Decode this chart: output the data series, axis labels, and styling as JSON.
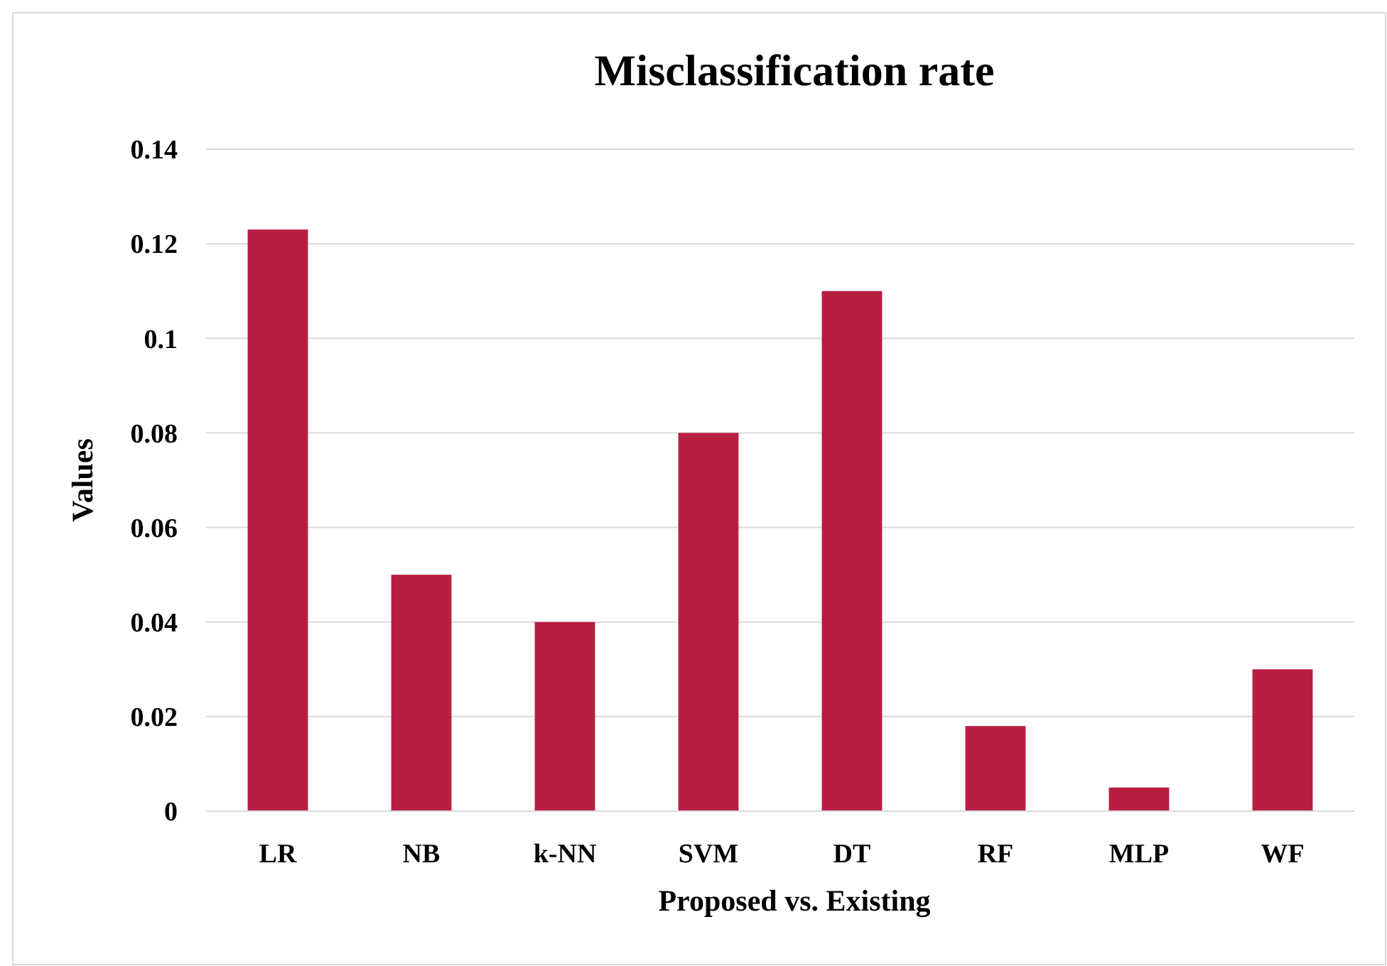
{
  "chart_data": {
    "type": "bar",
    "title": "Misclassification rate",
    "xlabel": "Proposed vs. Existing",
    "ylabel": "Values",
    "categories": [
      "LR",
      "NB",
      "k-NN",
      "SVM",
      "DT",
      "RF",
      "MLP",
      "WF"
    ],
    "values": [
      0.123,
      0.05,
      0.04,
      0.08,
      0.11,
      0.018,
      0.005,
      0.03
    ],
    "color": "#b81e42",
    "ylim": [
      0,
      0.14
    ],
    "yticks": [
      0,
      0.02,
      0.04,
      0.06,
      0.08,
      0.1,
      0.12,
      0.14
    ],
    "grid": "y"
  }
}
